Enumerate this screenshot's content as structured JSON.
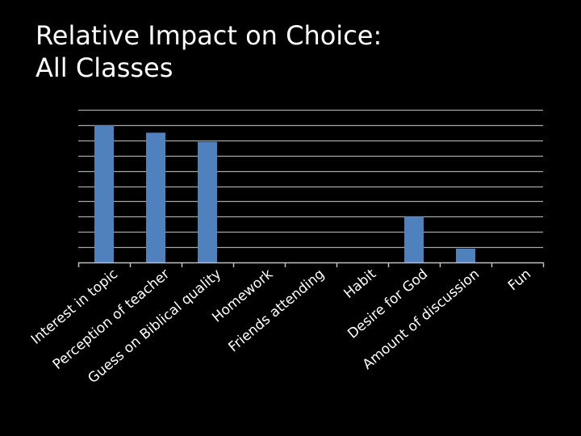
{
  "title_lines": [
    "Relative Impact on Choice:",
    "All Classes"
  ],
  "chart_data": {
    "type": "bar",
    "categories": [
      "Interest in topic",
      "Perception of teacher",
      "Guess on Biblical quality",
      "Homework",
      "Friends attending",
      "Habit",
      "Desire for God",
      "Amount of discussion",
      "Fun"
    ],
    "values": [
      9.0,
      8.5,
      7.9,
      0,
      0,
      0,
      3.0,
      0.9,
      0
    ],
    "ylim": [
      0,
      10
    ],
    "grid": true,
    "axis_tick_labels_shown": false,
    "bar_color": "#4f81bd",
    "grid_color": "#a6a6a6",
    "axis_color": "#bfbfbf",
    "background": "#000000",
    "text_color": "#ffffff"
  }
}
